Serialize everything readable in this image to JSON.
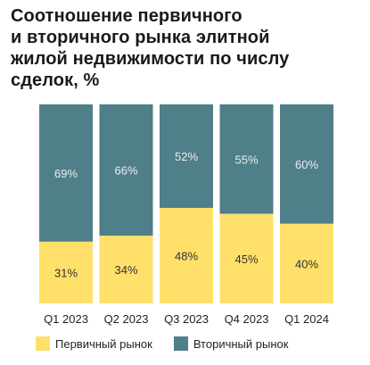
{
  "title_lines": [
    "Соотношение первичного",
    "и вторичного рынка элитной",
    "жилой недвижимости по числу",
    "сделок, %"
  ],
  "colors": {
    "primary": "#FFE06A",
    "secondary": "#4F7F89",
    "primary_label": "#333333",
    "secondary_label": "#E8EEF0"
  },
  "chart_data": {
    "type": "bar",
    "stacked": true,
    "categories": [
      "Q1 2023",
      "Q2 2023",
      "Q3 2023",
      "Q4 2023",
      "Q1 2024"
    ],
    "series": [
      {
        "name": "Первичный рынок",
        "labels": [
          "31%",
          "34%",
          "48%",
          "45%",
          "40%"
        ],
        "values": [
          31,
          34,
          48,
          45,
          40
        ]
      },
      {
        "name": "Вторичный рынок",
        "labels": [
          "69%",
          "66%",
          "52%",
          "55%",
          "60%"
        ],
        "values": [
          69,
          66,
          52,
          55,
          60
        ]
      }
    ],
    "ylim": [
      0,
      100
    ],
    "legend_position": "bottom-left"
  }
}
